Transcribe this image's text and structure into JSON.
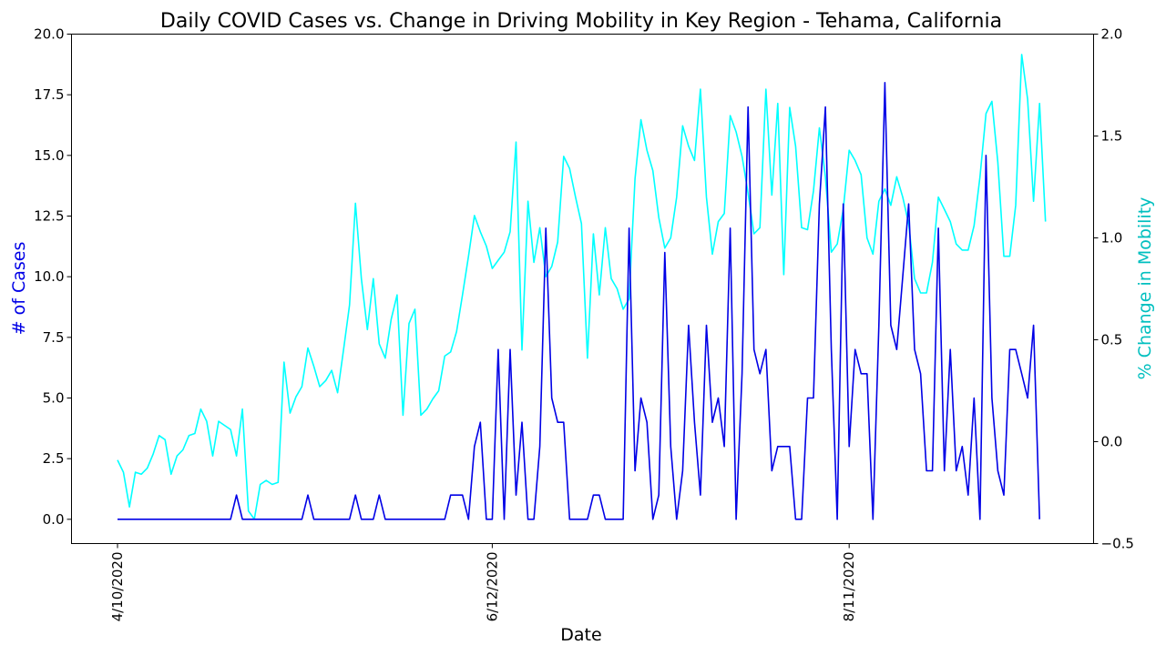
{
  "chart_data": {
    "type": "line",
    "title": "Daily COVID Cases vs. Change in Driving Mobility in Key Region - Tehama, California",
    "xlabel": "Date",
    "ylabel_left": "# of Cases",
    "ylabel_right": "% Change in Mobility",
    "x_ticks": [
      "4/10/2020",
      "6/12/2020",
      "8/11/2020"
    ],
    "y_left_ticks": [
      "0.0",
      "2.5",
      "5.0",
      "7.5",
      "10.0",
      "12.5",
      "15.0",
      "17.5",
      "20.0"
    ],
    "y_right_ticks": [
      "−0.5",
      "0.0",
      "0.5",
      "1.0",
      "1.5",
      "2.0"
    ],
    "ylim_left": [
      -1,
      20
    ],
    "ylim_right": [
      -0.5,
      2.0
    ],
    "x_start_date": "2020-04-10",
    "grid": false,
    "series": [
      {
        "axis": "left",
        "color": "#0000e6",
        "values": [
          0,
          0,
          0,
          0,
          0,
          0,
          0,
          0,
          0,
          0,
          0,
          0,
          0,
          0,
          0,
          0,
          0,
          0,
          0,
          0,
          1,
          0,
          0,
          0,
          0,
          0,
          0,
          0,
          0,
          0,
          0,
          0,
          1,
          0,
          0,
          0,
          0,
          0,
          0,
          0,
          1,
          0,
          0,
          0,
          1,
          0,
          0,
          0,
          0,
          0,
          0,
          0,
          0,
          0,
          0,
          0,
          1,
          1,
          1,
          0,
          3,
          4,
          0,
          0,
          7,
          0,
          7,
          1,
          4,
          0,
          0,
          3,
          12,
          5,
          4,
          4,
          0,
          0,
          0,
          0,
          1,
          1,
          0,
          0,
          0,
          0,
          12,
          2,
          5,
          4,
          0,
          1,
          11,
          3,
          0,
          2,
          8,
          4,
          1,
          8,
          4,
          5,
          3,
          12,
          0,
          6,
          17,
          7,
          6,
          7,
          2,
          3,
          3,
          3,
          0,
          0,
          5,
          5,
          13,
          17,
          7,
          0,
          13,
          3,
          7,
          6,
          6,
          0,
          8,
          18,
          8,
          7,
          10,
          13,
          7,
          6,
          2,
          2,
          12,
          2,
          7,
          2,
          3,
          1,
          5,
          0,
          15,
          5,
          2,
          1,
          7,
          7,
          6,
          5,
          8,
          0
        ]
      },
      {
        "axis": "right",
        "color": "#00ffff",
        "values": [
          -0.09,
          -0.15,
          -0.32,
          -0.15,
          -0.16,
          -0.13,
          -0.06,
          0.03,
          0.01,
          -0.16,
          -0.07,
          -0.04,
          0.03,
          0.04,
          0.16,
          0.1,
          -0.07,
          0.1,
          0.08,
          0.06,
          -0.07,
          0.16,
          -0.34,
          -0.38,
          -0.21,
          -0.19,
          -0.21,
          -0.2,
          0.39,
          0.14,
          0.22,
          0.27,
          0.46,
          0.37,
          0.27,
          0.3,
          0.35,
          0.24,
          0.45,
          0.67,
          1.17,
          0.8,
          0.55,
          0.8,
          0.48,
          0.41,
          0.6,
          0.72,
          0.13,
          0.58,
          0.65,
          0.13,
          0.16,
          0.21,
          0.25,
          0.42,
          0.44,
          0.54,
          0.72,
          0.91,
          1.11,
          1.03,
          0.96,
          0.85,
          0.89,
          0.93,
          1.03,
          1.47,
          0.45,
          1.18,
          0.88,
          1.05,
          0.81,
          0.86,
          0.98,
          1.4,
          1.34,
          1.2,
          1.07,
          0.41,
          1.02,
          0.72,
          1.05,
          0.8,
          0.75,
          0.65,
          0.7,
          1.29,
          1.58,
          1.43,
          1.33,
          1.1,
          0.95,
          1.0,
          1.2,
          1.55,
          1.45,
          1.38,
          1.73,
          1.2,
          0.92,
          1.08,
          1.12,
          1.6,
          1.52,
          1.4,
          1.22,
          1.02,
          1.05,
          1.73,
          1.21,
          1.66,
          0.82,
          1.64,
          1.45,
          1.05,
          1.04,
          1.23,
          1.54,
          1.3,
          0.93,
          0.97,
          1.14,
          1.43,
          1.38,
          1.31,
          1.0,
          0.92,
          1.18,
          1.24,
          1.16,
          1.3,
          1.2,
          1.07,
          0.8,
          0.73,
          0.73,
          0.88,
          1.2,
          1.14,
          1.08,
          0.97,
          0.94,
          0.94,
          1.06,
          1.3,
          1.61,
          1.67,
          1.37,
          0.91,
          0.91,
          1.16,
          1.9,
          1.68,
          1.18,
          1.66,
          1.08
        ]
      }
    ]
  }
}
